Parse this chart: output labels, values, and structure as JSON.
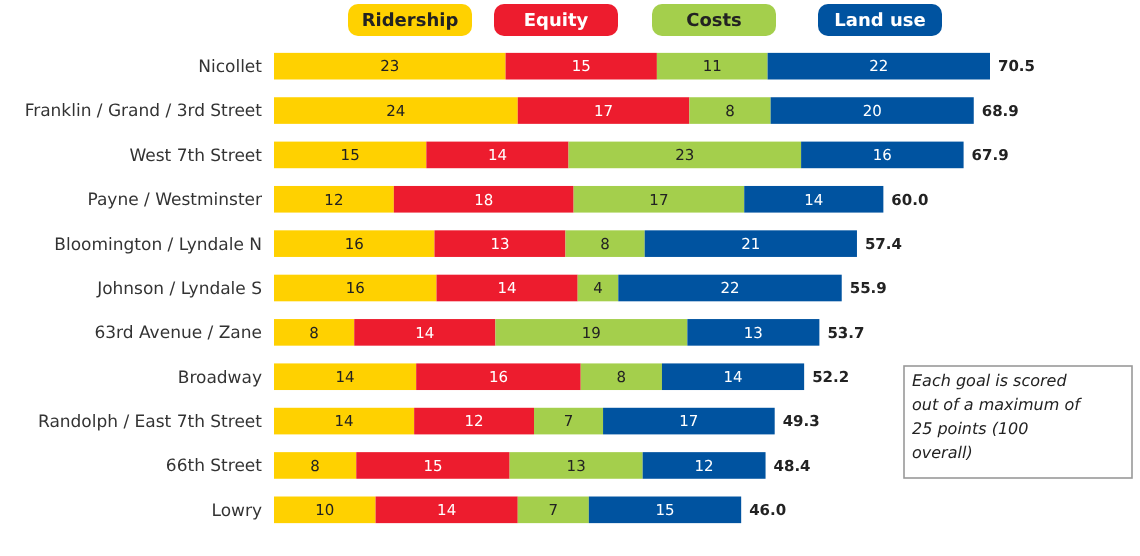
{
  "chart_data": {
    "type": "bar",
    "orientation": "horizontal",
    "stacked": true,
    "legend": "top",
    "tick_labels": "y",
    "categories": [
      "Nicollet",
      "Franklin / Grand / 3rd Street",
      "West 7th Street",
      "Payne / Westminster",
      "Bloomington / Lyndale N",
      "Johnson / Lyndale S",
      "63rd Avenue / Zane",
      "Broadway",
      "Randolph / East 7th Street",
      "66th Street",
      "Lowry"
    ],
    "series": [
      {
        "name": "Ridership",
        "color": "#ffd100",
        "values": [
          22.8,
          24,
          15,
          11.8,
          15.8,
          16,
          7.9,
          14,
          13.8,
          8.1,
          10
        ],
        "value_labels": [
          "23",
          "24",
          "15",
          "12",
          "16",
          "16",
          "8",
          "14",
          "14",
          "8",
          "10"
        ]
      },
      {
        "name": "Equity",
        "color": "#ed1c2e",
        "values": [
          14.9,
          16.9,
          14,
          17.7,
          12.9,
          13.9,
          13.9,
          16.2,
          11.8,
          15.1,
          14
        ],
        "value_labels": [
          "15",
          "17",
          "14",
          "18",
          "13",
          "14",
          "14",
          "16",
          "12",
          "15",
          "14"
        ]
      },
      {
        "name": "Costs",
        "color": "#a4cf4c",
        "values": [
          10.9,
          8,
          22.9,
          16.8,
          7.8,
          4,
          18.9,
          8,
          6.8,
          13.1,
          7
        ],
        "value_labels": [
          "11",
          "8",
          "23",
          "17",
          "8",
          "4",
          "19",
          "8",
          "7",
          "13",
          "7"
        ]
      },
      {
        "name": "Land use",
        "color": "#0053a0",
        "values": [
          21.9,
          20,
          16,
          13.7,
          20.9,
          22,
          13,
          14,
          16.9,
          12.1,
          15
        ],
        "value_labels": [
          "22",
          "20",
          "16",
          "14",
          "21",
          "22",
          "13",
          "14",
          "17",
          "12",
          "15"
        ]
      }
    ],
    "totals": [
      "70.5",
      "68.9",
      "67.9",
      "60.0",
      "57.4",
      "55.9",
      "53.7",
      "52.2",
      "49.3",
      "48.4",
      "46.0"
    ],
    "annotations": [
      "Each goal is scored out of a maximum of 25 points (100 overall)"
    ]
  }
}
